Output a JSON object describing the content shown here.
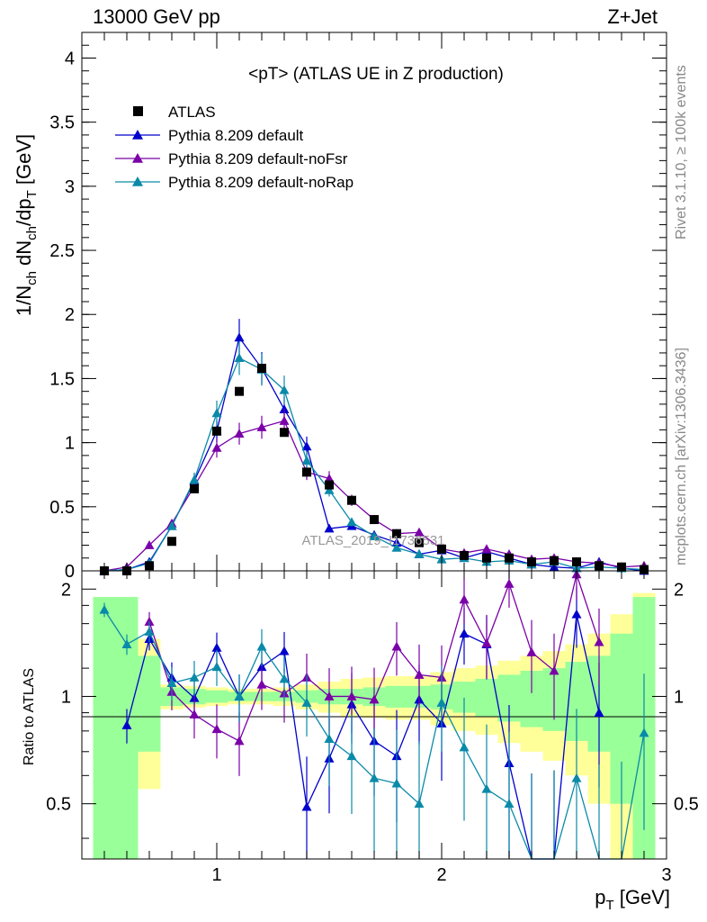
{
  "header": {
    "left": "13000 GeV pp",
    "right": "Z+Jet"
  },
  "side_text": {
    "rivet": "Rivet 3.1.10, ≥ 100k events",
    "mcplots": "mcplots.cern.ch [arXiv:1306.3436]"
  },
  "watermark": "ATLAS_2019_I1736531",
  "colors": {
    "atlas": "#000000",
    "default": "#0000cc",
    "noFsr": "#7a00a8",
    "noRap": "#0a8aa8",
    "band_inner": "#99ff99",
    "band_outer": "#ffff99"
  },
  "chart_data": [
    {
      "type": "line",
      "title": "<pT> (ATLAS UE in Z production)",
      "xlabel": "p_T [GeV]",
      "ylabel": "1/N_ch dN_ch/dp_T [GeV]",
      "xlim": [
        0.4,
        3.0
      ],
      "ylim": [
        0,
        4.2
      ],
      "yticks": [
        "0",
        "0.5",
        "1",
        "1.5",
        "2",
        "2.5",
        "3",
        "3.5",
        "4"
      ],
      "legend_position": "top-left",
      "x": [
        0.5,
        0.6,
        0.7,
        0.8,
        0.9,
        1.0,
        1.1,
        1.2,
        1.3,
        1.4,
        1.5,
        1.6,
        1.7,
        1.8,
        1.9,
        2.0,
        2.1,
        2.2,
        2.3,
        2.4,
        2.5,
        2.6,
        2.7,
        2.8,
        2.9
      ],
      "series": [
        {
          "name": "ATLAS",
          "marker": "square",
          "values": [
            0.0,
            0.0,
            0.04,
            0.23,
            0.64,
            1.09,
            1.4,
            1.58,
            1.08,
            0.77,
            0.67,
            0.55,
            0.4,
            0.29,
            0.22,
            0.17,
            0.12,
            0.1,
            0.1,
            0.07,
            0.08,
            0.07,
            0.04,
            0.03,
            0.01
          ]
        },
        {
          "name": "Pythia 8.209 default",
          "marker": "triangle",
          "values": [
            0.0,
            0.01,
            0.07,
            0.35,
            0.7,
            1.09,
            1.82,
            1.58,
            1.26,
            0.97,
            0.33,
            0.35,
            0.28,
            0.22,
            0.13,
            0.16,
            0.1,
            0.15,
            0.1,
            0.05,
            0.03,
            0.02,
            0.07,
            0.02,
            0.0
          ]
        },
        {
          "name": "Pythia 8.209 default-noFsr",
          "marker": "triangle",
          "values": [
            0.0,
            0.03,
            0.2,
            0.37,
            0.66,
            0.96,
            1.07,
            1.12,
            1.17,
            0.77,
            0.72,
            0.55,
            0.4,
            0.29,
            0.3,
            0.17,
            0.14,
            0.17,
            0.13,
            0.09,
            0.1,
            0.07,
            0.06,
            0.03,
            0.04
          ]
        },
        {
          "name": "Pythia 8.209 default-noRap",
          "marker": "triangle",
          "values": [
            0.0,
            0.01,
            0.06,
            0.35,
            0.71,
            1.23,
            1.66,
            1.57,
            1.41,
            0.86,
            0.63,
            0.38,
            0.27,
            0.18,
            0.13,
            0.09,
            0.1,
            0.07,
            0.08,
            0.05,
            0.07,
            0.02,
            0.03,
            0.02,
            0.01
          ]
        }
      ]
    },
    {
      "type": "line",
      "title": "",
      "xlabel": "p_T [GeV]",
      "ylabel": "Ratio to ATLAS",
      "xlim": [
        0.4,
        3.0
      ],
      "ylim": [
        0.35,
        2.25
      ],
      "yticks": [
        "0.5",
        "1",
        "2"
      ],
      "xticks": [
        "1",
        "2",
        "3"
      ],
      "x": [
        0.5,
        0.6,
        0.7,
        0.8,
        0.9,
        1.0,
        1.1,
        1.2,
        1.3,
        1.4,
        1.5,
        1.6,
        1.7,
        1.8,
        1.9,
        2.0,
        2.1,
        2.2,
        2.3,
        2.4,
        2.5,
        2.6,
        2.7,
        2.8,
        2.9
      ],
      "series": [
        {
          "name": "Pythia 8.209 default",
          "values": [
            null,
            0.83,
            1.45,
            1.13,
            0.99,
            1.37,
            1.0,
            1.21,
            1.34,
            0.49,
            0.67,
            0.95,
            0.75,
            0.68,
            0.98,
            0.84,
            1.5,
            1.4,
            0.65,
            0.3,
            0.3,
            1.7,
            0.9,
            null,
            null
          ]
        },
        {
          "name": "Pythia 8.209 default-noFsr",
          "values": [
            null,
            null,
            1.62,
            1.03,
            0.89,
            0.81,
            0.75,
            1.08,
            1.02,
            1.13,
            1.0,
            1.0,
            0.98,
            1.38,
            1.15,
            1.13,
            1.87,
            1.41,
            2.07,
            1.33,
            1.18,
            2.2,
            1.42,
            null,
            null
          ]
        },
        {
          "name": "Pythia 8.209 default-noRap",
          "values": [
            1.75,
            1.4,
            1.52,
            1.09,
            1.13,
            1.21,
            1.0,
            1.38,
            1.12,
            0.96,
            0.76,
            0.68,
            0.59,
            0.57,
            0.5,
            0.96,
            0.72,
            0.55,
            0.5,
            0.3,
            0.3,
            0.59,
            0.3,
            0.3,
            0.79
          ]
        }
      ],
      "reference_line": 1
    }
  ]
}
